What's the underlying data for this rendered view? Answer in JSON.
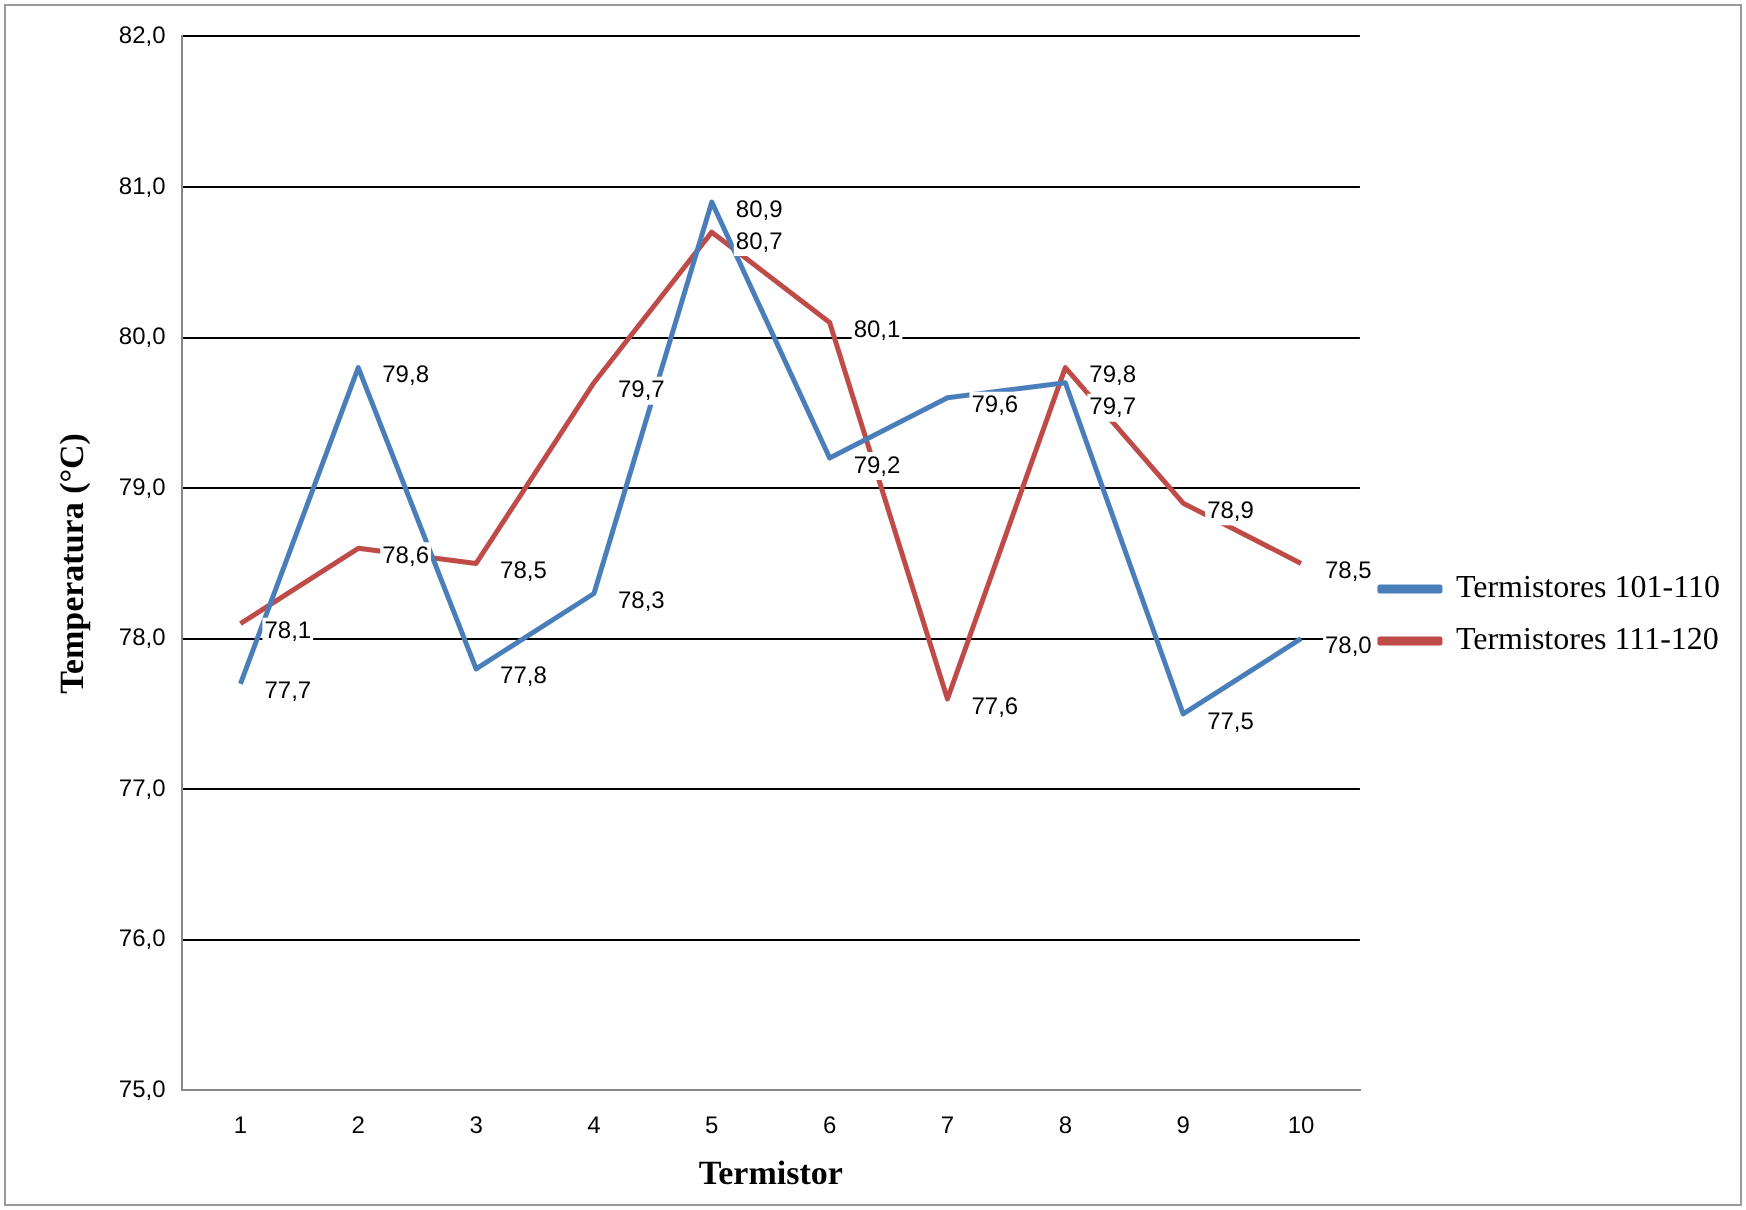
{
  "chart_data": {
    "type": "line",
    "xlabel": "Termistor",
    "ylabel": "Temperatura (°C)",
    "categories": [
      "1",
      "2",
      "3",
      "4",
      "5",
      "6",
      "7",
      "8",
      "9",
      "10"
    ],
    "series": [
      {
        "name": "Termistores 101-110",
        "color": "#4a7ebb",
        "values": [
          77.7,
          79.8,
          77.8,
          78.3,
          80.9,
          79.2,
          79.6,
          79.7,
          77.5,
          78.0
        ],
        "value_labels": [
          "77,7",
          "79,8",
          "77,8",
          "78,3",
          "80,9",
          "79,2",
          "79,6",
          "79,7",
          "77,5",
          "78,0"
        ]
      },
      {
        "name": "Termistores 111-120",
        "color": "#be4b48",
        "values": [
          78.1,
          78.6,
          78.5,
          79.7,
          80.7,
          80.1,
          77.6,
          79.8,
          78.9,
          78.5
        ],
        "value_labels": [
          "78,1",
          "78,6",
          "78,5",
          "79,7",
          "80,7",
          "80,1",
          "77,6",
          "79,8",
          "78,9",
          "78,5"
        ]
      }
    ],
    "ylim": [
      75,
      82
    ],
    "yticks": [
      {
        "value": 75,
        "label": "75,0"
      },
      {
        "value": 76,
        "label": "76,0"
      },
      {
        "value": 77,
        "label": "77,0"
      },
      {
        "value": 78,
        "label": "78,0"
      },
      {
        "value": 79,
        "label": "79,0"
      },
      {
        "value": 80,
        "label": "80,0"
      },
      {
        "value": 81,
        "label": "81,0"
      },
      {
        "value": 82,
        "label": "82,0"
      }
    ],
    "grid": "y",
    "legend": "right",
    "marker": "none",
    "line_style": "solid"
  }
}
